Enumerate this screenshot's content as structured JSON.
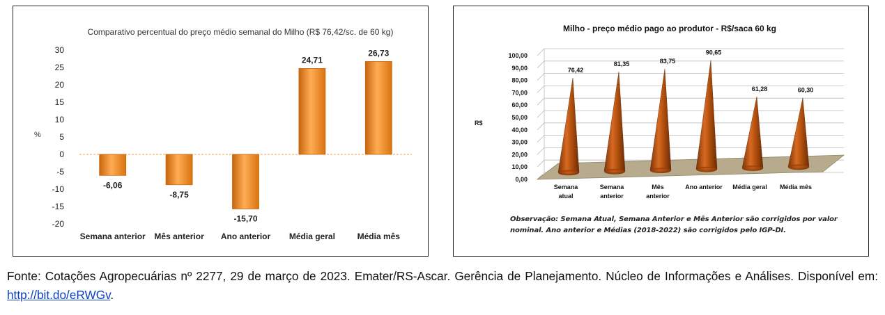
{
  "chart_data": [
    {
      "type": "bar",
      "title": "Comparativo percentual do preço médio semanal do Milho (R$ 76,42/sc. de 60 kg)",
      "ylabel": "%",
      "xlabel": "",
      "categories": [
        "Semana anterior",
        "Mês anterior",
        "Ano anterior",
        "Média geral",
        "Média mês"
      ],
      "values": [
        -6.06,
        -8.75,
        -15.7,
        24.71,
        26.73
      ],
      "value_labels": [
        "-6,06",
        "-8,75",
        "-15,70",
        "24,71",
        "26,73"
      ],
      "ylim": [
        -20,
        30
      ],
      "yticks": [
        30,
        25,
        20,
        15,
        10,
        5,
        0,
        -5,
        -10,
        -15,
        -20
      ],
      "grid": false,
      "bar_color": "#f08a1c"
    },
    {
      "type": "bar",
      "style": "3d-cone",
      "title": "Milho - preço médio pago ao produtor - R$/saca 60 kg",
      "ylabel": "R$",
      "xlabel": "",
      "categories": [
        [
          "Semana",
          "atual"
        ],
        [
          "Semana",
          "anterior"
        ],
        [
          "Mês",
          "anterior"
        ],
        [
          "Ano anterior"
        ],
        [
          "Média geral"
        ],
        [
          "Média mês"
        ]
      ],
      "values": [
        76.42,
        81.35,
        83.75,
        90.65,
        61.28,
        60.3
      ],
      "value_labels": [
        "76,42",
        "81,35",
        "83,75",
        "90,65",
        "61,28",
        "60,30"
      ],
      "ylim": [
        0,
        100
      ],
      "yticks": [
        "100,00",
        "90,00",
        "80,00",
        "70,00",
        "60,00",
        "50,00",
        "40,00",
        "30,00",
        "20,00",
        "10,00",
        "0,00"
      ],
      "grid": true,
      "cone_color": "#b14f12",
      "note": "Observação: Semana Atual, Semana Anterior e Mês Anterior são corrigidos por valor nominal. Ano anterior e Médias (2018-2022) são corrigidos pelo IGP-DI."
    }
  ],
  "source": {
    "text": "Fonte: Cotações Agropecuárias nº 2277, 29 de março de 2023. Emater/RS-Ascar. Gerência de Planejamento. Núcleo de Informações e Análises. Disponível em: ",
    "link": "http://bit.do/eRWGv",
    "end": "."
  }
}
